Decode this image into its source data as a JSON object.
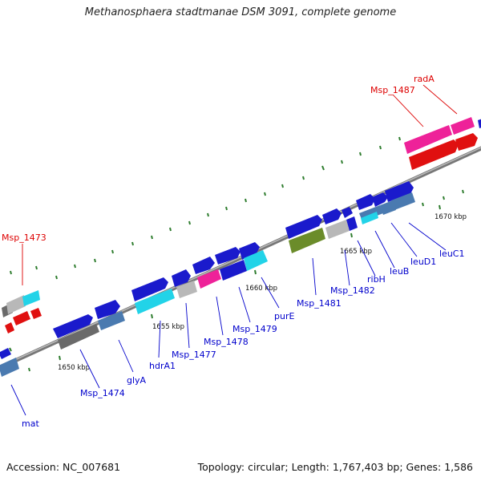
{
  "title": "Methanosphaera stadtmanae DSM 3091, complete genome",
  "accession": "Accession: NC_007681",
  "summary": "Topology: circular; Length: 1,767,403 bp; Genes: 1,586",
  "colors": {
    "backbone": "#8a8a8a",
    "tick": "#2e7d2e",
    "gene_label": "#0000cc",
    "highlight_label": "#dd0000",
    "forward_gene": "#1a1acc",
    "reverse_gene": "#e01010",
    "rna": "#ee2299",
    "pseudo": "#b8b8b8",
    "cyan": "#22d3e8",
    "steelblue": "#4a7ab0",
    "olive": "#6b8c2a",
    "darkgray": "#6a6a6a"
  },
  "scale_labels": [
    "1650 kbp",
    "1655 kbp",
    "1660 kbp",
    "1665 kbp",
    "1670 kbp"
  ],
  "gene_labels": [
    {
      "text": "mat",
      "highlight": false
    },
    {
      "text": "Msp_1474",
      "highlight": false
    },
    {
      "text": "glyA",
      "highlight": false
    },
    {
      "text": "hdrA1",
      "highlight": false
    },
    {
      "text": "Msp_1477",
      "highlight": false
    },
    {
      "text": "Msp_1478",
      "highlight": false
    },
    {
      "text": "Msp_1479",
      "highlight": false
    },
    {
      "text": "purE",
      "highlight": false
    },
    {
      "text": "Msp_1481",
      "highlight": false
    },
    {
      "text": "Msp_1482",
      "highlight": false
    },
    {
      "text": "ribH",
      "highlight": false
    },
    {
      "text": "leuB",
      "highlight": false
    },
    {
      "text": "leuD1",
      "highlight": false
    },
    {
      "text": "leuC1",
      "highlight": false
    },
    {
      "text": "Msp_1473",
      "highlight": true
    },
    {
      "text": "Msp_1487",
      "highlight": true
    },
    {
      "text": "radA",
      "highlight": true
    }
  ]
}
